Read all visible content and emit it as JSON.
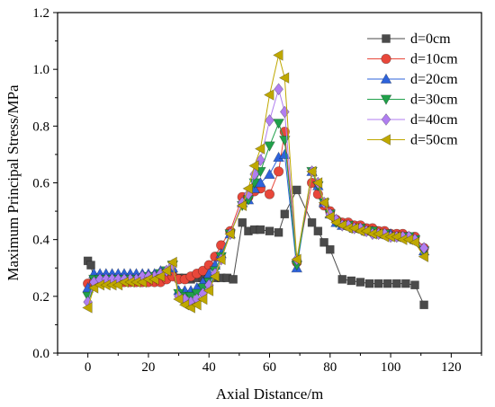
{
  "chart_data": {
    "type": "line",
    "title": "",
    "xlabel": "Axial Distance/m",
    "ylabel": "Maximum Principal Stress/MPa",
    "xlim": [
      -10,
      130
    ],
    "ylim": [
      0.0,
      1.2
    ],
    "xticks": [
      "0",
      "20",
      "40",
      "60",
      "80",
      "100",
      "120"
    ],
    "yticks": [
      "0.0",
      "0.2",
      "0.4",
      "0.6",
      "0.8",
      "1.0",
      "1.2"
    ],
    "grid": false,
    "legend_position": "top-right",
    "series": [
      {
        "name": "d=0cm",
        "color": "#4a4a4a",
        "marker": "square",
        "points": [
          [
            0,
            0.325
          ],
          [
            1,
            0.31
          ],
          [
            2,
            0.26
          ],
          [
            4,
            0.26
          ],
          [
            6,
            0.26
          ],
          [
            8,
            0.26
          ],
          [
            10,
            0.26
          ],
          [
            12,
            0.26
          ],
          [
            14,
            0.26
          ],
          [
            16,
            0.26
          ],
          [
            18,
            0.26
          ],
          [
            20,
            0.26
          ],
          [
            22,
            0.26
          ],
          [
            24,
            0.26
          ],
          [
            26,
            0.27
          ],
          [
            28,
            0.28
          ],
          [
            30,
            0.265
          ],
          [
            32,
            0.265
          ],
          [
            34,
            0.26
          ],
          [
            36,
            0.265
          ],
          [
            38,
            0.265
          ],
          [
            40,
            0.265
          ],
          [
            42,
            0.265
          ],
          [
            44,
            0.265
          ],
          [
            46,
            0.265
          ],
          [
            48,
            0.26
          ],
          [
            51,
            0.46
          ],
          [
            53,
            0.43
          ],
          [
            55,
            0.435
          ],
          [
            57,
            0.435
          ],
          [
            60,
            0.43
          ],
          [
            63,
            0.425
          ],
          [
            65,
            0.49
          ],
          [
            69,
            0.575
          ],
          [
            74,
            0.46
          ],
          [
            76,
            0.43
          ],
          [
            78,
            0.39
          ],
          [
            80,
            0.365
          ],
          [
            84,
            0.26
          ],
          [
            87,
            0.255
          ],
          [
            90,
            0.25
          ],
          [
            93,
            0.245
          ],
          [
            96,
            0.245
          ],
          [
            99,
            0.245
          ],
          [
            102,
            0.245
          ],
          [
            105,
            0.245
          ],
          [
            108,
            0.24
          ],
          [
            111,
            0.17
          ]
        ]
      },
      {
        "name": "d=10cm",
        "color": "#e8473a",
        "marker": "circle",
        "points": [
          [
            0,
            0.245
          ],
          [
            2,
            0.25
          ],
          [
            4,
            0.25
          ],
          [
            6,
            0.25
          ],
          [
            8,
            0.25
          ],
          [
            10,
            0.25
          ],
          [
            12,
            0.25
          ],
          [
            14,
            0.25
          ],
          [
            16,
            0.25
          ],
          [
            18,
            0.25
          ],
          [
            20,
            0.25
          ],
          [
            22,
            0.25
          ],
          [
            24,
            0.25
          ],
          [
            26,
            0.26
          ],
          [
            28,
            0.27
          ],
          [
            30,
            0.26
          ],
          [
            32,
            0.26
          ],
          [
            34,
            0.27
          ],
          [
            36,
            0.28
          ],
          [
            38,
            0.29
          ],
          [
            40,
            0.31
          ],
          [
            42,
            0.34
          ],
          [
            44,
            0.38
          ],
          [
            47,
            0.43
          ],
          [
            51,
            0.55
          ],
          [
            53,
            0.55
          ],
          [
            55,
            0.57
          ],
          [
            57,
            0.58
          ],
          [
            60,
            0.56
          ],
          [
            63,
            0.64
          ],
          [
            65,
            0.78
          ],
          [
            69,
            0.32
          ],
          [
            74,
            0.6
          ],
          [
            76,
            0.56
          ],
          [
            78,
            0.52
          ],
          [
            80,
            0.5
          ],
          [
            82,
            0.47
          ],
          [
            84,
            0.46
          ],
          [
            86,
            0.46
          ],
          [
            88,
            0.45
          ],
          [
            90,
            0.45
          ],
          [
            92,
            0.44
          ],
          [
            94,
            0.44
          ],
          [
            96,
            0.43
          ],
          [
            98,
            0.43
          ],
          [
            100,
            0.42
          ],
          [
            102,
            0.42
          ],
          [
            104,
            0.42
          ],
          [
            106,
            0.41
          ],
          [
            108,
            0.41
          ],
          [
            111,
            0.37
          ]
        ]
      },
      {
        "name": "d=20cm",
        "color": "#2e63db",
        "marker": "triangle-up",
        "points": [
          [
            0,
            0.23
          ],
          [
            2,
            0.28
          ],
          [
            4,
            0.28
          ],
          [
            6,
            0.28
          ],
          [
            8,
            0.28
          ],
          [
            10,
            0.28
          ],
          [
            12,
            0.28
          ],
          [
            14,
            0.28
          ],
          [
            16,
            0.28
          ],
          [
            18,
            0.28
          ],
          [
            20,
            0.28
          ],
          [
            22,
            0.28
          ],
          [
            24,
            0.29
          ],
          [
            26,
            0.29
          ],
          [
            28,
            0.3
          ],
          [
            30,
            0.22
          ],
          [
            32,
            0.22
          ],
          [
            34,
            0.22
          ],
          [
            36,
            0.23
          ],
          [
            38,
            0.25
          ],
          [
            40,
            0.28
          ],
          [
            42,
            0.31
          ],
          [
            44,
            0.35
          ],
          [
            47,
            0.42
          ],
          [
            51,
            0.53
          ],
          [
            53,
            0.54
          ],
          [
            55,
            0.58
          ],
          [
            57,
            0.6
          ],
          [
            60,
            0.63
          ],
          [
            63,
            0.69
          ],
          [
            65,
            0.7
          ],
          [
            69,
            0.3
          ],
          [
            74,
            0.64
          ],
          [
            76,
            0.59
          ],
          [
            78,
            0.53
          ],
          [
            80,
            0.49
          ],
          [
            82,
            0.46
          ],
          [
            84,
            0.45
          ],
          [
            86,
            0.45
          ],
          [
            88,
            0.44
          ],
          [
            90,
            0.44
          ],
          [
            92,
            0.43
          ],
          [
            94,
            0.43
          ],
          [
            96,
            0.42
          ],
          [
            98,
            0.42
          ],
          [
            100,
            0.42
          ],
          [
            102,
            0.41
          ],
          [
            104,
            0.41
          ],
          [
            106,
            0.41
          ],
          [
            108,
            0.4
          ],
          [
            111,
            0.36
          ]
        ]
      },
      {
        "name": "d=30cm",
        "color": "#20a04a",
        "marker": "triangle-down",
        "points": [
          [
            0,
            0.2
          ],
          [
            2,
            0.26
          ],
          [
            4,
            0.26
          ],
          [
            6,
            0.26
          ],
          [
            8,
            0.26
          ],
          [
            10,
            0.26
          ],
          [
            12,
            0.26
          ],
          [
            14,
            0.26
          ],
          [
            16,
            0.26
          ],
          [
            18,
            0.26
          ],
          [
            20,
            0.27
          ],
          [
            22,
            0.27
          ],
          [
            24,
            0.28
          ],
          [
            26,
            0.29
          ],
          [
            28,
            0.31
          ],
          [
            30,
            0.21
          ],
          [
            32,
            0.2
          ],
          [
            34,
            0.2
          ],
          [
            36,
            0.21
          ],
          [
            38,
            0.23
          ],
          [
            40,
            0.25
          ],
          [
            42,
            0.29
          ],
          [
            44,
            0.34
          ],
          [
            47,
            0.42
          ],
          [
            51,
            0.52
          ],
          [
            53,
            0.54
          ],
          [
            55,
            0.6
          ],
          [
            57,
            0.64
          ],
          [
            60,
            0.73
          ],
          [
            63,
            0.81
          ],
          [
            65,
            0.75
          ],
          [
            69,
            0.31
          ],
          [
            74,
            0.64
          ],
          [
            76,
            0.59
          ],
          [
            78,
            0.53
          ],
          [
            80,
            0.49
          ],
          [
            82,
            0.46
          ],
          [
            84,
            0.45
          ],
          [
            86,
            0.45
          ],
          [
            88,
            0.44
          ],
          [
            90,
            0.44
          ],
          [
            92,
            0.43
          ],
          [
            94,
            0.43
          ],
          [
            96,
            0.42
          ],
          [
            98,
            0.42
          ],
          [
            100,
            0.41
          ],
          [
            102,
            0.41
          ],
          [
            104,
            0.41
          ],
          [
            106,
            0.41
          ],
          [
            108,
            0.4
          ],
          [
            111,
            0.36
          ]
        ]
      },
      {
        "name": "d=40cm",
        "color": "#b07ef0",
        "marker": "diamond",
        "points": [
          [
            0,
            0.18
          ],
          [
            2,
            0.25
          ],
          [
            4,
            0.26
          ],
          [
            6,
            0.26
          ],
          [
            8,
            0.26
          ],
          [
            10,
            0.26
          ],
          [
            12,
            0.26
          ],
          [
            14,
            0.26
          ],
          [
            16,
            0.26
          ],
          [
            18,
            0.27
          ],
          [
            20,
            0.27
          ],
          [
            22,
            0.27
          ],
          [
            24,
            0.28
          ],
          [
            26,
            0.29
          ],
          [
            28,
            0.31
          ],
          [
            30,
            0.2
          ],
          [
            32,
            0.19
          ],
          [
            34,
            0.18
          ],
          [
            36,
            0.19
          ],
          [
            38,
            0.21
          ],
          [
            40,
            0.24
          ],
          [
            42,
            0.28
          ],
          [
            44,
            0.33
          ],
          [
            47,
            0.42
          ],
          [
            51,
            0.53
          ],
          [
            53,
            0.56
          ],
          [
            55,
            0.63
          ],
          [
            57,
            0.68
          ],
          [
            60,
            0.82
          ],
          [
            63,
            0.93
          ],
          [
            65,
            0.85
          ],
          [
            69,
            0.33
          ],
          [
            74,
            0.64
          ],
          [
            76,
            0.6
          ],
          [
            78,
            0.53
          ],
          [
            80,
            0.49
          ],
          [
            82,
            0.47
          ],
          [
            84,
            0.45
          ],
          [
            86,
            0.45
          ],
          [
            88,
            0.44
          ],
          [
            90,
            0.44
          ],
          [
            92,
            0.43
          ],
          [
            94,
            0.42
          ],
          [
            96,
            0.42
          ],
          [
            98,
            0.42
          ],
          [
            100,
            0.41
          ],
          [
            102,
            0.41
          ],
          [
            104,
            0.41
          ],
          [
            106,
            0.41
          ],
          [
            108,
            0.4
          ],
          [
            111,
            0.37
          ]
        ]
      },
      {
        "name": "d=50cm",
        "color": "#bfa800",
        "marker": "triangle-left",
        "points": [
          [
            0,
            0.16
          ],
          [
            2,
            0.23
          ],
          [
            4,
            0.24
          ],
          [
            6,
            0.24
          ],
          [
            8,
            0.24
          ],
          [
            10,
            0.24
          ],
          [
            12,
            0.25
          ],
          [
            14,
            0.25
          ],
          [
            16,
            0.25
          ],
          [
            18,
            0.25
          ],
          [
            20,
            0.26
          ],
          [
            22,
            0.26
          ],
          [
            24,
            0.27
          ],
          [
            26,
            0.29
          ],
          [
            28,
            0.32
          ],
          [
            30,
            0.19
          ],
          [
            32,
            0.17
          ],
          [
            34,
            0.16
          ],
          [
            36,
            0.17
          ],
          [
            38,
            0.19
          ],
          [
            40,
            0.22
          ],
          [
            42,
            0.27
          ],
          [
            44,
            0.33
          ],
          [
            47,
            0.42
          ],
          [
            51,
            0.52
          ],
          [
            53,
            0.58
          ],
          [
            55,
            0.66
          ],
          [
            57,
            0.72
          ],
          [
            60,
            0.91
          ],
          [
            63,
            1.05
          ],
          [
            65,
            0.97
          ],
          [
            69,
            0.33
          ],
          [
            74,
            0.64
          ],
          [
            76,
            0.6
          ],
          [
            78,
            0.53
          ],
          [
            80,
            0.48
          ],
          [
            82,
            0.46
          ],
          [
            84,
            0.45
          ],
          [
            86,
            0.44
          ],
          [
            88,
            0.44
          ],
          [
            90,
            0.43
          ],
          [
            92,
            0.43
          ],
          [
            94,
            0.42
          ],
          [
            96,
            0.42
          ],
          [
            98,
            0.41
          ],
          [
            100,
            0.41
          ],
          [
            102,
            0.41
          ],
          [
            104,
            0.4
          ],
          [
            106,
            0.4
          ],
          [
            108,
            0.39
          ],
          [
            111,
            0.34
          ]
        ]
      }
    ]
  }
}
